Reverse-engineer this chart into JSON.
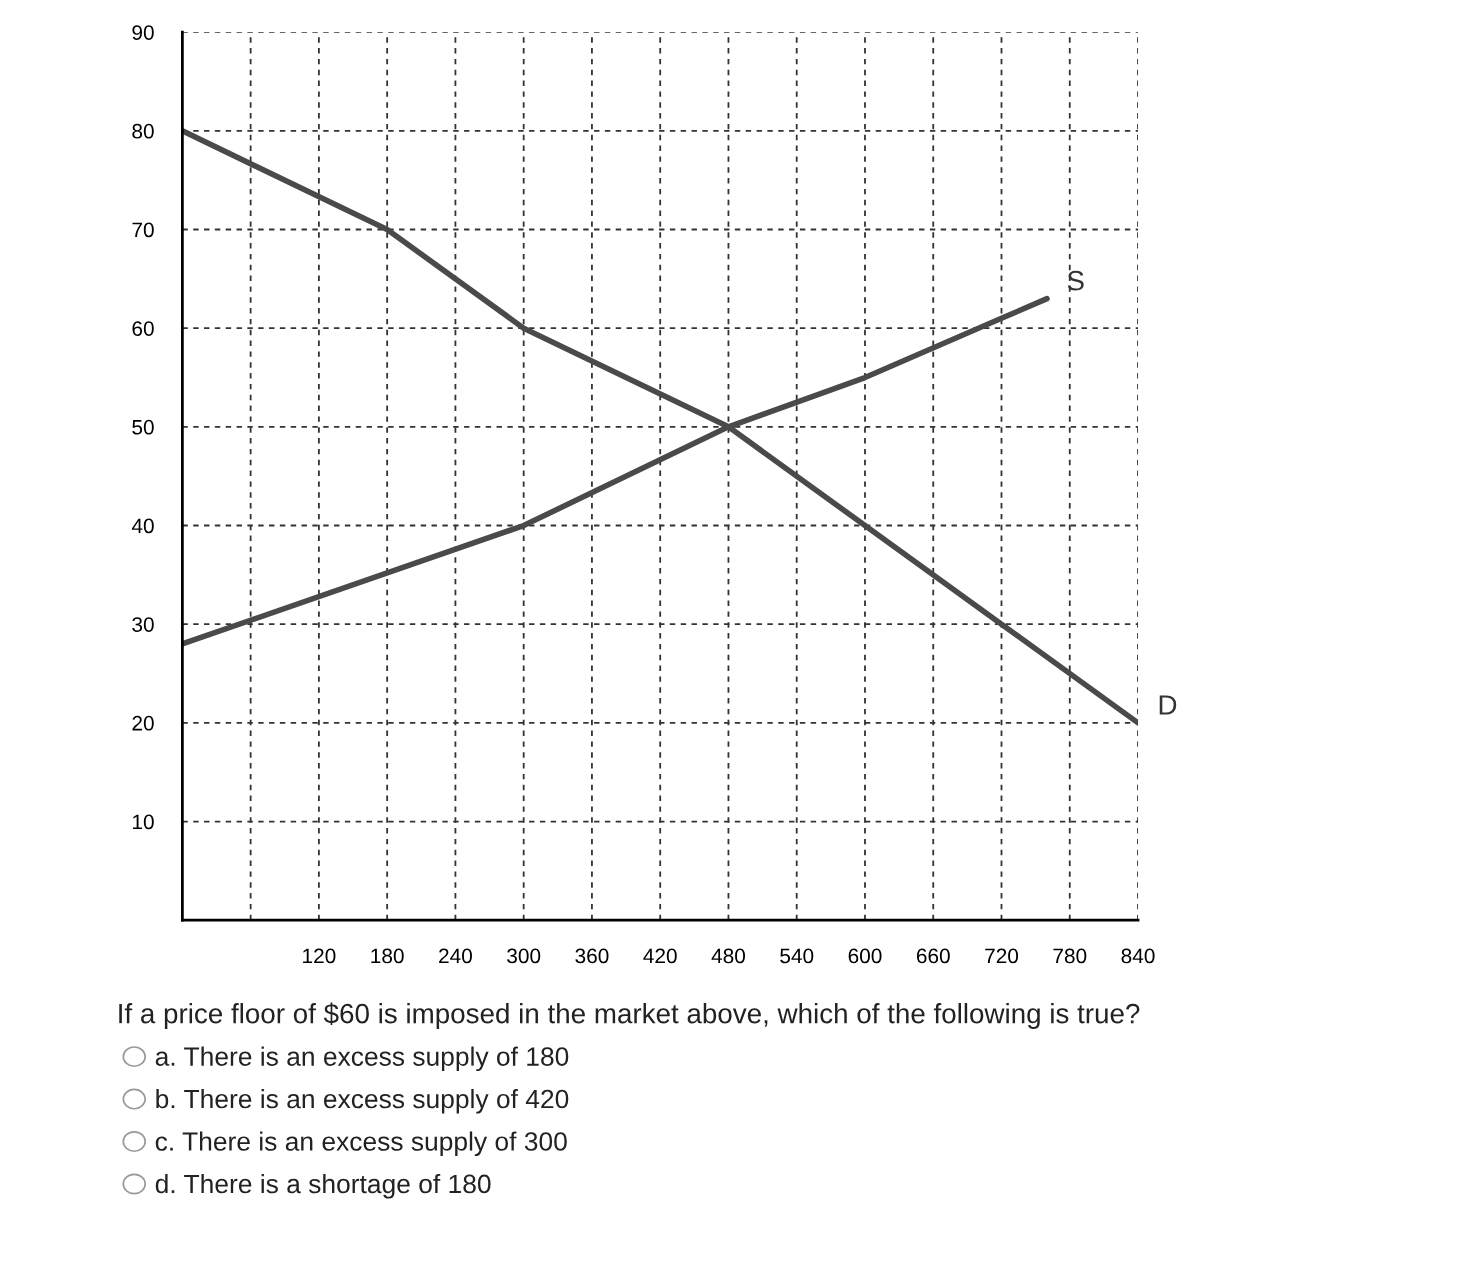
{
  "chart_data": {
    "type": "line",
    "series": [
      {
        "color": "#4a4a4a",
        "x": [
          0,
          180,
          300,
          480,
          600,
          720,
          840
        ],
        "values": [
          80,
          70,
          60,
          50,
          40,
          30,
          20
        ]
      },
      {
        "color": "#4a4a4a",
        "x": [
          0,
          300,
          480,
          600,
          720,
          760
        ],
        "values": [
          28,
          40,
          50,
          55,
          61,
          63
        ]
      }
    ],
    "xlim": [
      0,
      840
    ],
    "ylim": [
      0,
      90
    ],
    "xticks": [
      {
        "value": 60,
        "label": null
      },
      120,
      180,
      240,
      300,
      360,
      420,
      480,
      540,
      600,
      660,
      720,
      780,
      840
    ],
    "yticks": [
      10,
      20,
      30,
      40,
      50,
      60,
      70,
      80,
      90
    ],
    "grid": true,
    "marker": "none",
    "line_style": "solid",
    "annotations": [
      {
        "text": "S",
        "x": 760,
        "y": 63
      },
      {
        "text": "D",
        "x": 840,
        "y": 20
      },
      "If a price floor of $60 is imposed in the market above, which of the following is true?",
      "a. There is an excess supply of 180",
      "b. There is an excess supply of 420",
      "c. There is an excess supply of 300",
      "d. There is a shortage of 180"
    ]
  }
}
